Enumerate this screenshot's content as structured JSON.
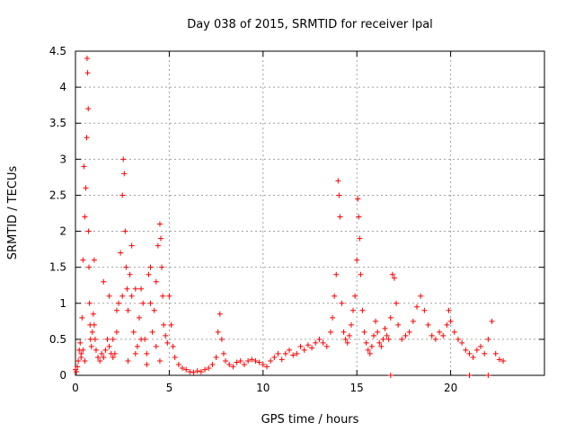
{
  "chart_data": {
    "type": "scatter",
    "title": "Day 038 of 2015, SRMTID for receiver lpal",
    "xlabel": "GPS time / hours",
    "ylabel": "SRMTID / TECUs",
    "xlim": [
      0,
      25
    ],
    "ylim": [
      0,
      4.5
    ],
    "xticks": [
      0,
      5,
      10,
      15,
      20
    ],
    "xtick_labels": [
      "0",
      "5",
      "10",
      "15",
      "20"
    ],
    "yticks": [
      0,
      0.5,
      1,
      1.5,
      2,
      2.5,
      3,
      3.5,
      4,
      4.5
    ],
    "ytick_labels": [
      "0",
      "0.5",
      "1",
      "1.5",
      "2",
      "2.5",
      "3",
      "3.5",
      "4",
      "4.5"
    ],
    "grid": true,
    "marker": "+",
    "color": "#ff0000",
    "series": [
      {
        "name": "SRMTID",
        "x": [
          0.0,
          0.05,
          0.1,
          0.15,
          0.2,
          0.25,
          0.3,
          0.35,
          0.4,
          0.45,
          0.5,
          0.55,
          0.6,
          0.62,
          0.65,
          0.68,
          0.7,
          0.72,
          0.75,
          0.78,
          0.8,
          0.85,
          0.9,
          0.95,
          1.0,
          1.05,
          1.1,
          1.2,
          1.3,
          1.4,
          1.5,
          1.6,
          1.7,
          1.8,
          1.9,
          2.0,
          2.1,
          2.2,
          2.3,
          2.4,
          2.5,
          2.55,
          2.6,
          2.65,
          2.7,
          2.75,
          2.8,
          2.9,
          3.0,
          3.1,
          3.2,
          3.3,
          3.4,
          3.5,
          3.6,
          3.7,
          3.8,
          3.9,
          4.0,
          4.1,
          4.2,
          4.3,
          4.4,
          4.5,
          4.55,
          4.6,
          4.65,
          4.7,
          4.8,
          4.9,
          5.0,
          5.1,
          5.2,
          5.3,
          5.5,
          5.7,
          5.9,
          6.1,
          6.3,
          6.5,
          6.7,
          6.9,
          7.1,
          7.3,
          7.5,
          7.6,
          7.7,
          7.8,
          7.9,
          8.0,
          8.2,
          8.4,
          8.6,
          8.8,
          9.0,
          9.2,
          9.4,
          9.6,
          9.8,
          10.0,
          10.2,
          10.4,
          10.6,
          10.8,
          11.0,
          11.2,
          11.4,
          11.6,
          11.8,
          12.0,
          12.2,
          12.4,
          12.6,
          12.8,
          13.0,
          13.2,
          13.4,
          13.6,
          13.7,
          13.8,
          13.9,
          14.0,
          14.05,
          14.1,
          14.2,
          14.3,
          14.4,
          14.5,
          14.6,
          14.7,
          14.8,
          14.9,
          15.0,
          15.05,
          15.1,
          15.15,
          15.2,
          15.3,
          15.4,
          15.5,
          15.6,
          15.7,
          15.8,
          15.9,
          16.0,
          16.1,
          16.2,
          16.3,
          16.4,
          16.5,
          16.6,
          16.7,
          16.8,
          16.9,
          17.0,
          17.1,
          17.2,
          17.4,
          17.6,
          17.8,
          18.0,
          18.2,
          18.4,
          18.6,
          18.8,
          19.0,
          19.2,
          19.4,
          19.6,
          19.8,
          19.9,
          20.0,
          20.2,
          20.4,
          20.6,
          20.8,
          21.0,
          21.2,
          21.4,
          21.6,
          21.8,
          22.0,
          22.2,
          22.4,
          22.6,
          22.8,
          1.0,
          1.5,
          2.0,
          2.5,
          3.0,
          3.5,
          4.0,
          4.5,
          3.2,
          3.8,
          4.3,
          2.2,
          2.8,
          1.8,
          0.3,
          0.4,
          0.5,
          16.8,
          21.0,
          22.0
        ],
        "y": [
          0.08,
          0.05,
          0.12,
          0.2,
          0.35,
          0.45,
          0.3,
          0.8,
          1.6,
          2.9,
          2.2,
          2.6,
          3.3,
          4.4,
          4.2,
          3.7,
          2.0,
          1.5,
          1.0,
          0.7,
          0.5,
          0.4,
          0.6,
          0.85,
          0.7,
          0.5,
          0.35,
          0.25,
          0.2,
          0.3,
          0.25,
          0.35,
          0.5,
          0.4,
          0.3,
          0.25,
          0.3,
          0.6,
          1.0,
          1.7,
          2.5,
          3.0,
          2.8,
          2.0,
          1.5,
          1.2,
          0.9,
          1.4,
          1.1,
          0.6,
          0.3,
          0.4,
          0.8,
          1.2,
          1.0,
          0.5,
          0.3,
          1.4,
          1.0,
          0.6,
          0.9,
          1.3,
          1.8,
          2.1,
          1.9,
          1.5,
          1.1,
          0.7,
          0.55,
          0.45,
          1.1,
          0.7,
          0.4,
          0.25,
          0.15,
          0.1,
          0.08,
          0.05,
          0.04,
          0.06,
          0.05,
          0.08,
          0.1,
          0.15,
          0.25,
          0.6,
          0.85,
          0.5,
          0.3,
          0.2,
          0.15,
          0.12,
          0.18,
          0.2,
          0.15,
          0.2,
          0.22,
          0.2,
          0.18,
          0.15,
          0.12,
          0.2,
          0.25,
          0.3,
          0.22,
          0.3,
          0.35,
          0.28,
          0.3,
          0.4,
          0.35,
          0.42,
          0.38,
          0.45,
          0.5,
          0.45,
          0.4,
          0.6,
          0.8,
          1.1,
          1.4,
          2.7,
          2.5,
          2.2,
          1.0,
          0.6,
          0.5,
          0.45,
          0.55,
          0.7,
          0.9,
          1.1,
          1.6,
          2.45,
          2.2,
          1.9,
          1.4,
          0.9,
          0.6,
          0.45,
          0.35,
          0.3,
          0.4,
          0.55,
          0.75,
          0.6,
          0.45,
          0.4,
          0.5,
          0.65,
          0.55,
          0.5,
          0.8,
          1.4,
          1.35,
          1.0,
          0.7,
          0.5,
          0.55,
          0.6,
          0.75,
          0.95,
          1.1,
          0.9,
          0.7,
          0.55,
          0.5,
          0.6,
          0.55,
          0.7,
          0.9,
          0.75,
          0.6,
          0.5,
          0.45,
          0.35,
          0.3,
          0.25,
          0.35,
          0.4,
          0.3,
          0.5,
          0.75,
          0.3,
          0.22,
          0.2,
          1.6,
          1.3,
          0.5,
          1.1,
          1.8,
          0.5,
          1.5,
          0.2,
          1.2,
          0.15,
          0.4,
          0.9,
          0.2,
          1.1,
          0.25,
          0.35,
          0.2,
          0.0,
          0.0,
          0.0
        ]
      }
    ]
  }
}
